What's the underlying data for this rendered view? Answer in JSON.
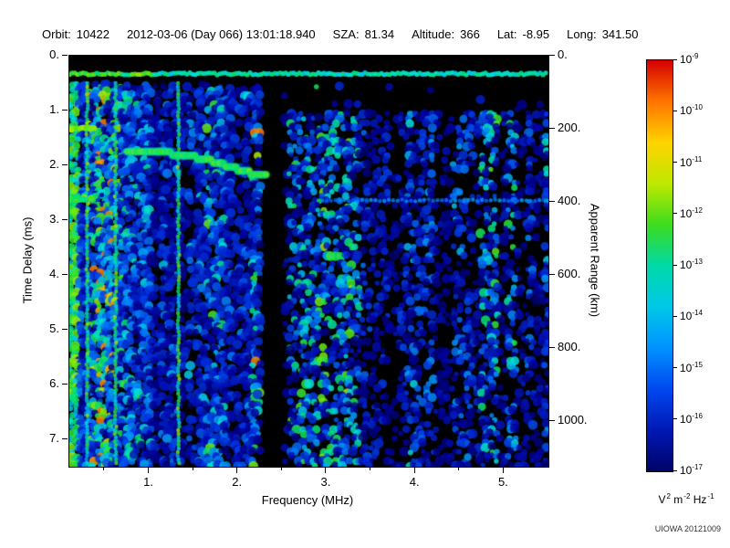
{
  "header": {
    "items": [
      {
        "label": "Orbit:",
        "value": "10422"
      },
      {
        "label": "",
        "value": "2012-03-06 (Day 066) 13:01:18.940"
      },
      {
        "label": "SZA:",
        "value": "81.34"
      },
      {
        "label": "Altitude:",
        "value": "366"
      },
      {
        "label": "Lat:",
        "value": "-8.95"
      },
      {
        "label": "Long:",
        "value": "341.50"
      }
    ]
  },
  "watermark": "UIOWA 20121009",
  "chart_data": {
    "type": "heatmap",
    "description": "Radar sounder ionogram spectrogram: received spectral density vs frequency and time delay",
    "xlabel": "Frequency (MHz)",
    "x_range_mhz": [
      0.1,
      5.5
    ],
    "x_tick_values": [
      1,
      2,
      3,
      4,
      5
    ],
    "x_tick_labels": [
      "1.",
      "2.",
      "3.",
      "4.",
      "5."
    ],
    "x_minor_step_mhz": 0.5,
    "ylabel": "Time Delay (ms)",
    "y_range_ms": [
      0,
      7.5
    ],
    "y_tick_values": [
      0,
      1,
      2,
      3,
      4,
      5,
      6,
      7
    ],
    "y_tick_labels": [
      "0.",
      "1.",
      "2.",
      "3.",
      "4.",
      "5.",
      "6.",
      "7."
    ],
    "y2label": "Apparent Range (km)",
    "y2_tick_values_km": [
      0,
      200,
      400,
      600,
      800,
      1000
    ],
    "y2_tick_labels": [
      "0.",
      "200.",
      "400.",
      "600.",
      "800.",
      "1000."
    ],
    "km_per_ms": 150,
    "grid": false,
    "colorbar": {
      "scale": "log",
      "mantissa": "10",
      "exponents": [
        "-9",
        "-10",
        "-11",
        "-12",
        "-13",
        "-14",
        "-15",
        "-16",
        "-17"
      ],
      "unit_parts": [
        {
          "base": "V",
          "exp": "2"
        },
        {
          "base": "m",
          "exp": "-2"
        },
        {
          "base": "Hz",
          "exp": "-1"
        }
      ],
      "gradient": [
        "#d40000",
        "#ff7400",
        "#ffd300",
        "#bfe800",
        "#3ddc1e",
        "#00d9a8",
        "#00c8e8",
        "#0092ff",
        "#0048f0",
        "#0018b4",
        "#000468"
      ]
    },
    "features": [
      {
        "name": "surface-reflection-line",
        "time_delay_ms": 0.33,
        "freq_span_mhz": [
          0.1,
          5.5
        ]
      },
      {
        "name": "ionospheric-echo-trace",
        "points_mhz_ms": [
          [
            0.75,
            1.75
          ],
          [
            1.1,
            1.77
          ],
          [
            1.4,
            1.8
          ],
          [
            1.6,
            1.88
          ],
          [
            1.8,
            1.97
          ],
          [
            2.0,
            2.07
          ],
          [
            2.15,
            2.14
          ],
          [
            2.32,
            2.2
          ]
        ]
      },
      {
        "name": "low-frequency-noise-band",
        "freq_span_mhz": [
          0.1,
          1.55
        ]
      },
      {
        "name": "echo-segment-low-freq",
        "time_delay_ms": 1.33,
        "freq_span_mhz": [
          0.1,
          0.4
        ]
      },
      {
        "name": "second-hop-patch",
        "time_delay_ms": 2.6,
        "freq_span_mhz": [
          0.1,
          0.4
        ]
      },
      {
        "name": "horizontal-streak-400km",
        "time_delay_ms": 2.64,
        "freq_span_mhz": [
          2.95,
          5.5
        ]
      },
      {
        "name": "vertical-interference-lines",
        "freqs_mhz": [
          0.3,
          0.62,
          1.33
        ]
      },
      {
        "name": "quiet-band",
        "freq_span_mhz": [
          2.28,
          2.52
        ]
      }
    ]
  }
}
